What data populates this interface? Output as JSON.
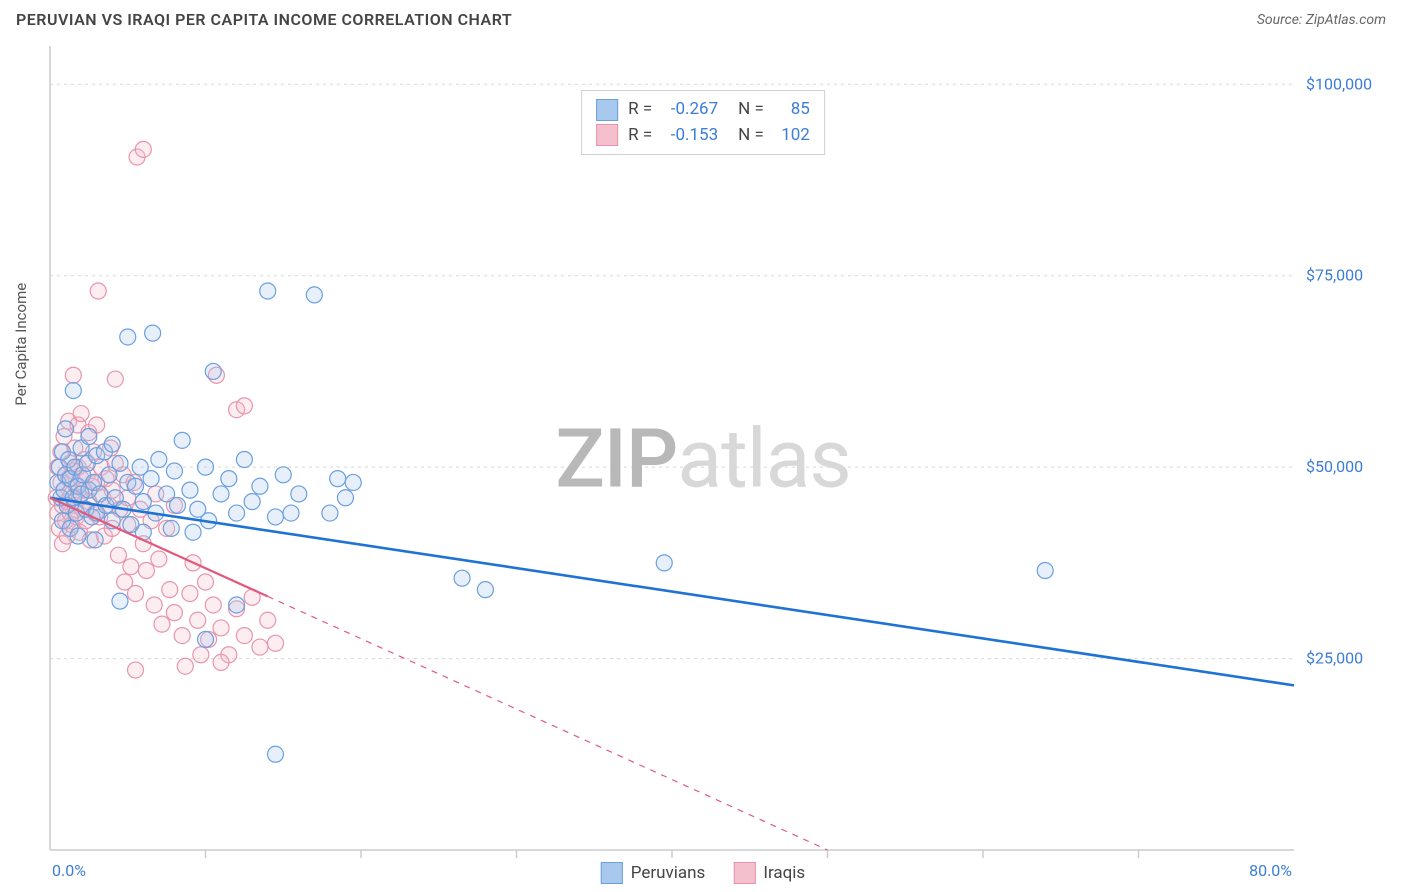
{
  "title": "PERUVIAN VS IRAQI PER CAPITA INCOME CORRELATION CHART",
  "source": "Source: ZipAtlas.com",
  "watermark_bold": "ZIP",
  "watermark_rest": "atlas",
  "ylabel": "Per Capita Income",
  "chart": {
    "type": "scatter",
    "xlim": [
      0,
      80
    ],
    "ylim": [
      0,
      105000
    ],
    "x_axis_format": "percent",
    "y_axis_format": "currency",
    "x_ticks_major_label": [
      {
        "v": 0,
        "label": "0.0%"
      },
      {
        "v": 80,
        "label": "80.0%"
      }
    ],
    "x_ticks_minor": [
      10,
      20,
      30,
      40,
      50,
      60,
      70
    ],
    "y_ticks": [
      {
        "v": 25000,
        "label": "$25,000"
      },
      {
        "v": 50000,
        "label": "$50,000"
      },
      {
        "v": 75000,
        "label": "$75,000"
      },
      {
        "v": 100000,
        "label": "$100,000"
      }
    ],
    "grid_color": "#d8d8d8",
    "grid_dash": "3,4",
    "axis_color": "#cccccc",
    "marker_radius": 8,
    "marker_stroke_width": 1.2,
    "marker_fill_opacity": 0.28,
    "background_color": "#ffffff",
    "series": [
      {
        "name": "Peruvians",
        "color_stroke": "#6a9fe0",
        "color_fill": "#a9c8ee",
        "trend_color": "#1f73d4",
        "trend_width": 2.6,
        "trend_dash": "none",
        "trend": {
          "x1": 0,
          "y1": 46000,
          "x2": 80,
          "y2": 21500
        },
        "r_value": "-0.267",
        "n_value": "85",
        "points": [
          [
            0.5,
            48000
          ],
          [
            0.6,
            50000
          ],
          [
            0.7,
            46000
          ],
          [
            0.8,
            52000
          ],
          [
            0.8,
            43000
          ],
          [
            0.9,
            47000
          ],
          [
            1.0,
            49000
          ],
          [
            1.0,
            55000
          ],
          [
            1.1,
            45000
          ],
          [
            1.2,
            51000
          ],
          [
            1.3,
            48500
          ],
          [
            1.3,
            42000
          ],
          [
            1.5,
            60000
          ],
          [
            1.5,
            46000
          ],
          [
            1.6,
            50000
          ],
          [
            1.7,
            44000
          ],
          [
            1.8,
            47500
          ],
          [
            1.8,
            41000
          ],
          [
            2.0,
            52500
          ],
          [
            2.0,
            46500
          ],
          [
            2.1,
            49000
          ],
          [
            2.3,
            44500
          ],
          [
            2.4,
            50500
          ],
          [
            2.5,
            47000
          ],
          [
            2.5,
            54000
          ],
          [
            2.7,
            43500
          ],
          [
            2.8,
            48000
          ],
          [
            2.9,
            40500
          ],
          [
            3.0,
            51500
          ],
          [
            3.0,
            44000
          ],
          [
            3.2,
            46500
          ],
          [
            3.5,
            52000
          ],
          [
            3.6,
            45000
          ],
          [
            3.8,
            49000
          ],
          [
            4.0,
            53000
          ],
          [
            4.0,
            43000
          ],
          [
            4.2,
            46000
          ],
          [
            4.5,
            50500
          ],
          [
            4.5,
            32500
          ],
          [
            4.7,
            44500
          ],
          [
            5.0,
            48000
          ],
          [
            5.0,
            67000
          ],
          [
            5.2,
            42500
          ],
          [
            5.5,
            47500
          ],
          [
            5.8,
            50000
          ],
          [
            6.0,
            45500
          ],
          [
            6.0,
            41500
          ],
          [
            6.5,
            48500
          ],
          [
            6.6,
            67500
          ],
          [
            6.8,
            44000
          ],
          [
            7.0,
            51000
          ],
          [
            7.5,
            46500
          ],
          [
            7.8,
            42000
          ],
          [
            8.0,
            49500
          ],
          [
            8.2,
            45000
          ],
          [
            8.5,
            53500
          ],
          [
            9.0,
            47000
          ],
          [
            9.2,
            41500
          ],
          [
            9.5,
            44500
          ],
          [
            10.0,
            50000
          ],
          [
            10.0,
            27500
          ],
          [
            10.2,
            43000
          ],
          [
            10.5,
            62500
          ],
          [
            11.0,
            46500
          ],
          [
            11.5,
            48500
          ],
          [
            12.0,
            44000
          ],
          [
            12.0,
            32000
          ],
          [
            12.5,
            51000
          ],
          [
            13.0,
            45500
          ],
          [
            13.5,
            47500
          ],
          [
            14.0,
            73000
          ],
          [
            14.5,
            43500
          ],
          [
            14.5,
            12500
          ],
          [
            15.0,
            49000
          ],
          [
            15.5,
            44000
          ],
          [
            16.0,
            46500
          ],
          [
            17.0,
            72500
          ],
          [
            18.0,
            44000
          ],
          [
            18.5,
            48500
          ],
          [
            19.0,
            46000
          ],
          [
            19.5,
            48000
          ],
          [
            26.5,
            35500
          ],
          [
            28.0,
            34000
          ],
          [
            39.5,
            37500
          ],
          [
            64.0,
            36500
          ]
        ]
      },
      {
        "name": "Iraqis",
        "color_stroke": "#e895ac",
        "color_fill": "#f4c0cd",
        "trend_color": "#e05a7e",
        "trend_width": 2.2,
        "trend_dash_solid_until": 14,
        "trend_dash": "6,6",
        "trend": {
          "x1": 0,
          "y1": 46000,
          "x2": 50,
          "y2": 0
        },
        "r_value": "-0.153",
        "n_value": "102",
        "points": [
          [
            0.4,
            46000
          ],
          [
            0.5,
            44000
          ],
          [
            0.5,
            50000
          ],
          [
            0.6,
            42000
          ],
          [
            0.7,
            48000
          ],
          [
            0.7,
            52000
          ],
          [
            0.8,
            45000
          ],
          [
            0.8,
            40000
          ],
          [
            0.9,
            47000
          ],
          [
            0.9,
            54000
          ],
          [
            1.0,
            43000
          ],
          [
            1.0,
            49000
          ],
          [
            1.1,
            45500
          ],
          [
            1.1,
            41000
          ],
          [
            1.2,
            48500
          ],
          [
            1.2,
            56000
          ],
          [
            1.3,
            44000
          ],
          [
            1.3,
            50500
          ],
          [
            1.4,
            46500
          ],
          [
            1.4,
            42500
          ],
          [
            1.5,
            49500
          ],
          [
            1.5,
            62000
          ],
          [
            1.6,
            45000
          ],
          [
            1.6,
            52500
          ],
          [
            1.7,
            47500
          ],
          [
            1.7,
            43500
          ],
          [
            1.8,
            50000
          ],
          [
            1.8,
            55500
          ],
          [
            1.9,
            46000
          ],
          [
            1.9,
            41500
          ],
          [
            2.0,
            48500
          ],
          [
            2.0,
            57000
          ],
          [
            2.1,
            44500
          ],
          [
            2.2,
            51000
          ],
          [
            2.2,
            47000
          ],
          [
            2.3,
            43000
          ],
          [
            2.4,
            49000
          ],
          [
            2.5,
            54500
          ],
          [
            2.5,
            45500
          ],
          [
            2.6,
            40500
          ],
          [
            2.7,
            47500
          ],
          [
            2.8,
            52000
          ],
          [
            2.9,
            44000
          ],
          [
            3.0,
            48000
          ],
          [
            3.0,
            55500
          ],
          [
            3.1,
            73000
          ],
          [
            3.2,
            43500
          ],
          [
            3.3,
            50000
          ],
          [
            3.4,
            46000
          ],
          [
            3.5,
            41000
          ],
          [
            3.6,
            48500
          ],
          [
            3.8,
            45000
          ],
          [
            3.9,
            52500
          ],
          [
            4.0,
            42000
          ],
          [
            4.0,
            47000
          ],
          [
            4.2,
            50500
          ],
          [
            4.4,
            38500
          ],
          [
            4.5,
            44500
          ],
          [
            4.7,
            49000
          ],
          [
            4.8,
            35000
          ],
          [
            5.0,
            46000
          ],
          [
            5.0,
            42500
          ],
          [
            5.2,
            37000
          ],
          [
            5.4,
            48000
          ],
          [
            5.5,
            33500
          ],
          [
            5.6,
            90500
          ],
          [
            5.8,
            44500
          ],
          [
            6.0,
            40000
          ],
          [
            6.0,
            91500
          ],
          [
            6.2,
            36500
          ],
          [
            6.5,
            43000
          ],
          [
            6.7,
            32000
          ],
          [
            6.8,
            46500
          ],
          [
            7.0,
            38000
          ],
          [
            7.2,
            29500
          ],
          [
            7.5,
            42000
          ],
          [
            7.7,
            34000
          ],
          [
            8.0,
            45000
          ],
          [
            8.0,
            31000
          ],
          [
            8.5,
            28000
          ],
          [
            9.0,
            33500
          ],
          [
            9.2,
            37500
          ],
          [
            9.5,
            30000
          ],
          [
            10.0,
            35000
          ],
          [
            10.2,
            27500
          ],
          [
            10.5,
            32000
          ],
          [
            10.7,
            62000
          ],
          [
            11.0,
            29000
          ],
          [
            11.5,
            25500
          ],
          [
            12.0,
            31500
          ],
          [
            12.0,
            57500
          ],
          [
            12.5,
            28000
          ],
          [
            12.5,
            58000
          ],
          [
            13.0,
            33000
          ],
          [
            13.5,
            26500
          ],
          [
            14.0,
            30000
          ],
          [
            14.5,
            27000
          ],
          [
            11.0,
            24500
          ],
          [
            9.7,
            25500
          ],
          [
            8.7,
            24000
          ],
          [
            5.5,
            23500
          ],
          [
            4.2,
            61500
          ]
        ]
      }
    ]
  },
  "legend_series": [
    {
      "label": "Peruvians",
      "fill": "#a9c8ee",
      "stroke": "#6a9fe0"
    },
    {
      "label": "Iraqis",
      "fill": "#f4c0cd",
      "stroke": "#e895ac"
    }
  ]
}
